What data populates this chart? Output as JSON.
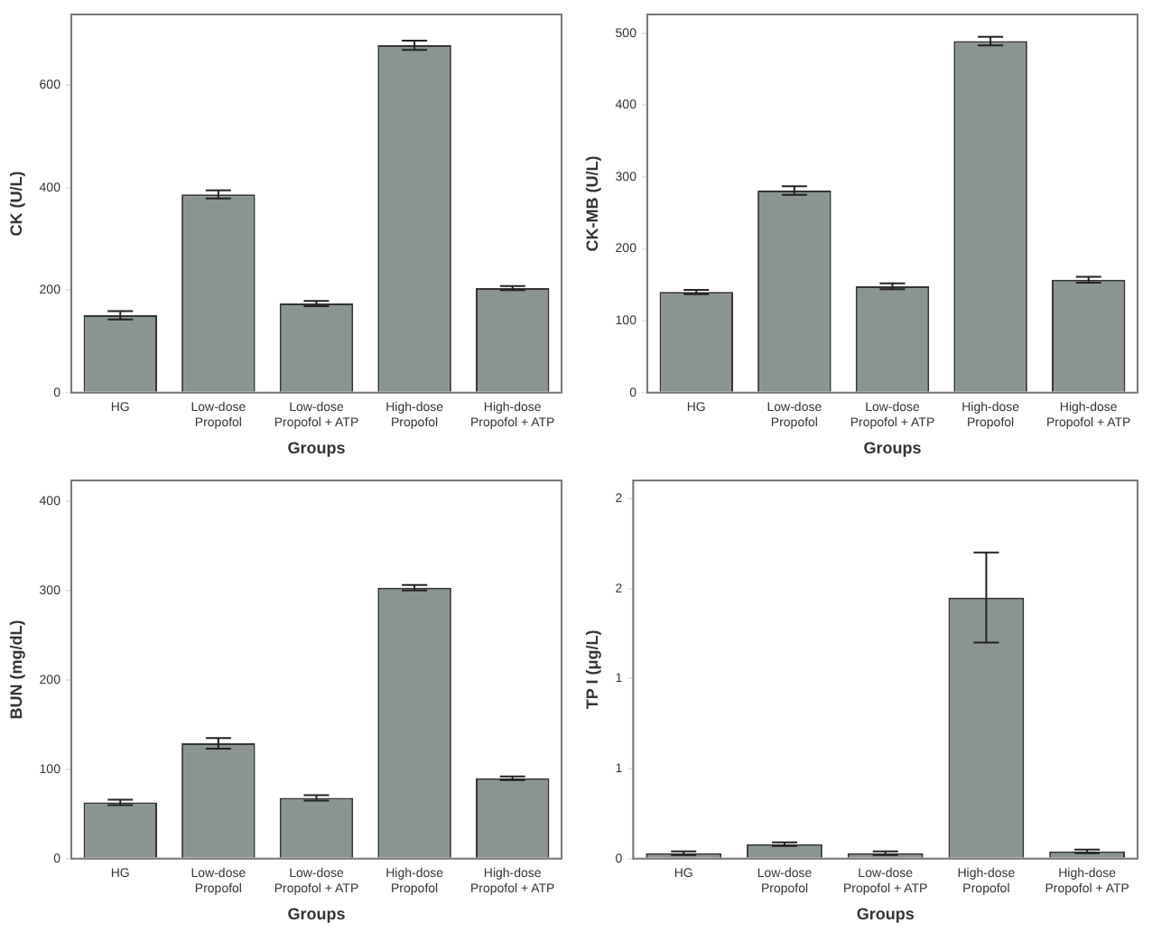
{
  "chart_data": [
    {
      "type": "bar",
      "xlabel": "Groups",
      "ylabel": "CK (U/L)",
      "categories": [
        "HG",
        "Low-dose\nPropofol",
        "Low-dose\nPropofol + ATP",
        "High-dose\nPropofol",
        "High-dose\nPropofol + ATP"
      ],
      "values": [
        151,
        387,
        174,
        678,
        204
      ],
      "errors": [
        8,
        8,
        5,
        9,
        4
      ],
      "color": "#8a9593",
      "ylim": [
        0,
        738
      ],
      "yticks": [
        0,
        200,
        400,
        600
      ],
      "grid": false
    },
    {
      "type": "bar",
      "xlabel": "Groups",
      "ylabel": "CK-MB (U/L)",
      "categories": [
        "HG",
        "Low-dose\nPropofol",
        "Low-dose\nPropofol + ATP",
        "High-dose\nPropofol",
        "High-dose\nPropofol + ATP"
      ],
      "values": [
        140,
        281,
        148,
        489,
        157
      ],
      "errors": [
        3,
        6,
        4,
        6,
        4
      ],
      "color": "#8a9593",
      "ylim": [
        0,
        526
      ],
      "yticks": [
        0,
        100,
        200,
        300,
        400,
        500
      ],
      "grid": false
    },
    {
      "type": "bar",
      "xlabel": "Groups",
      "ylabel": "BUN (mg/dL)",
      "categories": [
        "HG",
        "Low-dose\nPropofol",
        "Low-dose\nPropofol + ATP",
        "High-dose\nPropofol",
        "High-dose\nPropofol + ATP"
      ],
      "values": [
        63,
        129,
        68,
        303,
        90
      ],
      "errors": [
        3,
        6,
        3,
        3,
        2
      ],
      "color": "#8a9593",
      "ylim": [
        0,
        423
      ],
      "yticks": [
        0,
        100,
        200,
        300,
        400
      ],
      "grid": false
    },
    {
      "type": "bar",
      "xlabel": "Groups",
      "ylabel": "TP I (μg/L)",
      "categories": [
        "HG",
        "Low-dose\nPropofol",
        "Low-dose\nPropofol + ATP",
        "High-dose\nPropofol",
        "High-dose\nPropofol + ATP"
      ],
      "values": [
        0.03,
        0.08,
        0.03,
        1.45,
        0.04
      ],
      "errors": [
        0.01,
        0.01,
        0.01,
        0.25,
        0.01
      ],
      "color": "#8a9593",
      "ylim": [
        0,
        2.1
      ],
      "yticks": [
        0,
        {
          "value": 0.5,
          "label": "1"
        },
        {
          "value": 1,
          "label": "1"
        },
        {
          "value": 1.5,
          "label": "2"
        },
        {
          "value": 2,
          "label": "2"
        }
      ],
      "grid": false
    }
  ]
}
